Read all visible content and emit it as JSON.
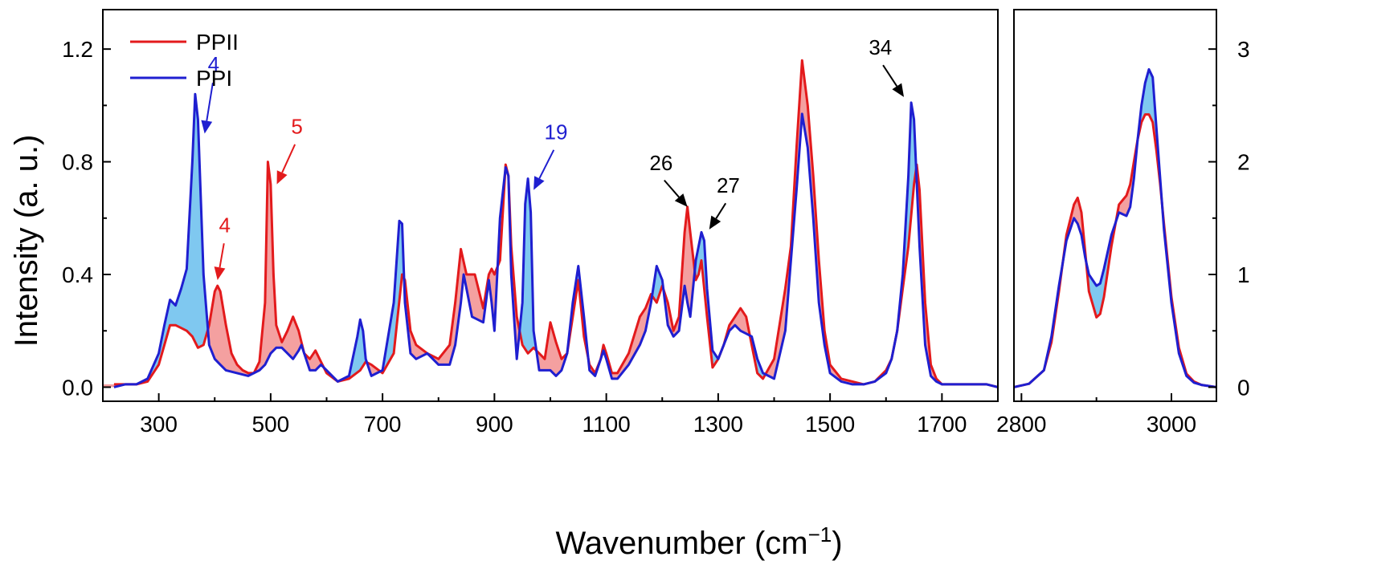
{
  "chart_data": {
    "type": "line",
    "title": "",
    "xlabel": "Wavenumber (cm",
    "xlabel_sup": "−1",
    "xlabel_close": ")",
    "ylabel": "Intensity (a. u.)",
    "colors": {
      "PPII": "#e31a1c",
      "PPI": "#1f1fd0",
      "fill_PPII_above": "#f4a0a0",
      "fill_PPI_above": "#7fc8f0"
    },
    "legend": {
      "placement": "top-left",
      "entries": [
        "PPII",
        "PPI"
      ]
    },
    "grid": false,
    "panels": [
      {
        "name": "low-wavenumber",
        "xlim": [
          200,
          1800
        ],
        "ylim": [
          -0.05,
          1.34
        ],
        "xticks": [
          300,
          500,
          700,
          900,
          1100,
          1300,
          1500,
          1700
        ],
        "xtick_labels": [
          "300",
          "500",
          "700",
          "900",
          "1100",
          "1300",
          "1500",
          "1700"
        ],
        "yticks": [
          0.0,
          0.4,
          0.8,
          1.2
        ],
        "ytick_labels": [
          "0.0",
          "0.4",
          "0.8",
          "1.2"
        ],
        "series": [
          {
            "name": "PPII",
            "x": [
              220,
              240,
              260,
              280,
              300,
              310,
              320,
              330,
              340,
              350,
              360,
              370,
              380,
              390,
              400,
              405,
              410,
              420,
              430,
              440,
              450,
              460,
              470,
              480,
              490,
              495,
              500,
              505,
              510,
              520,
              530,
              540,
              550,
              560,
              570,
              580,
              590,
              600,
              620,
              640,
              660,
              670,
              680,
              700,
              720,
              735,
              740,
              750,
              760,
              780,
              800,
              820,
              830,
              840,
              850,
              865,
              880,
              890,
              895,
              900,
              910,
              920,
              925,
              930,
              940,
              950,
              960,
              970,
              980,
              990,
              1000,
              1010,
              1020,
              1030,
              1040,
              1050,
              1060,
              1070,
              1080,
              1090,
              1095,
              1100,
              1110,
              1120,
              1140,
              1160,
              1170,
              1180,
              1190,
              1200,
              1210,
              1220,
              1230,
              1240,
              1245,
              1250,
              1260,
              1265,
              1270,
              1280,
              1290,
              1300,
              1310,
              1320,
              1330,
              1340,
              1350,
              1360,
              1370,
              1380,
              1400,
              1420,
              1430,
              1440,
              1450,
              1460,
              1470,
              1480,
              1490,
              1500,
              1520,
              1540,
              1560,
              1580,
              1600,
              1610,
              1620,
              1630,
              1640,
              1650,
              1655,
              1660,
              1670,
              1680,
              1690,
              1700,
              1720,
              1740,
              1760,
              1780,
              1800
            ],
            "y": [
              0.01,
              0.01,
              0.01,
              0.02,
              0.08,
              0.15,
              0.22,
              0.22,
              0.21,
              0.2,
              0.18,
              0.14,
              0.15,
              0.22,
              0.34,
              0.36,
              0.34,
              0.22,
              0.12,
              0.08,
              0.06,
              0.05,
              0.05,
              0.09,
              0.3,
              0.8,
              0.72,
              0.4,
              0.22,
              0.16,
              0.2,
              0.25,
              0.2,
              0.12,
              0.1,
              0.13,
              0.09,
              0.05,
              0.02,
              0.03,
              0.06,
              0.09,
              0.08,
              0.05,
              0.12,
              0.4,
              0.38,
              0.2,
              0.15,
              0.12,
              0.1,
              0.15,
              0.3,
              0.49,
              0.4,
              0.4,
              0.28,
              0.4,
              0.42,
              0.4,
              0.45,
              0.79,
              0.75,
              0.5,
              0.25,
              0.15,
              0.12,
              0.14,
              0.12,
              0.1,
              0.23,
              0.16,
              0.1,
              0.12,
              0.25,
              0.38,
              0.18,
              0.08,
              0.05,
              0.1,
              0.15,
              0.12,
              0.05,
              0.05,
              0.12,
              0.25,
              0.28,
              0.33,
              0.3,
              0.36,
              0.3,
              0.2,
              0.25,
              0.55,
              0.64,
              0.55,
              0.38,
              0.4,
              0.45,
              0.25,
              0.07,
              0.1,
              0.15,
              0.22,
              0.25,
              0.28,
              0.25,
              0.15,
              0.05,
              0.03,
              0.1,
              0.35,
              0.5,
              0.85,
              1.16,
              1.0,
              0.75,
              0.45,
              0.2,
              0.08,
              0.03,
              0.02,
              0.01,
              0.02,
              0.06,
              0.1,
              0.2,
              0.35,
              0.5,
              0.72,
              0.79,
              0.7,
              0.3,
              0.08,
              0.03,
              0.01,
              0.01,
              0.01,
              0.01,
              0.01,
              0.0
            ]
          },
          {
            "name": "PPI",
            "x": [
              220,
              240,
              260,
              280,
              300,
              310,
              320,
              330,
              340,
              350,
              360,
              365,
              370,
              380,
              390,
              400,
              410,
              420,
              440,
              460,
              480,
              490,
              500,
              510,
              520,
              530,
              540,
              550,
              555,
              560,
              570,
              580,
              590,
              600,
              620,
              640,
              655,
              660,
              665,
              670,
              680,
              700,
              720,
              730,
              735,
              740,
              750,
              760,
              780,
              800,
              820,
              830,
              840,
              845,
              850,
              860,
              880,
              890,
              895,
              900,
              910,
              920,
              925,
              930,
              940,
              950,
              955,
              960,
              965,
              970,
              980,
              990,
              1000,
              1010,
              1020,
              1030,
              1040,
              1050,
              1060,
              1070,
              1080,
              1090,
              1095,
              1100,
              1110,
              1120,
              1140,
              1160,
              1170,
              1180,
              1190,
              1200,
              1210,
              1220,
              1230,
              1240,
              1245,
              1250,
              1260,
              1270,
              1275,
              1280,
              1290,
              1300,
              1310,
              1320,
              1330,
              1340,
              1350,
              1360,
              1370,
              1380,
              1400,
              1420,
              1430,
              1440,
              1450,
              1460,
              1470,
              1480,
              1490,
              1500,
              1520,
              1540,
              1560,
              1580,
              1600,
              1610,
              1620,
              1630,
              1640,
              1645,
              1650,
              1660,
              1670,
              1680,
              1690,
              1700,
              1720,
              1740,
              1760,
              1780,
              1800
            ],
            "y": [
              0.0,
              0.01,
              0.01,
              0.03,
              0.12,
              0.22,
              0.31,
              0.29,
              0.35,
              0.42,
              0.8,
              1.04,
              0.95,
              0.4,
              0.15,
              0.1,
              0.08,
              0.06,
              0.05,
              0.04,
              0.06,
              0.08,
              0.12,
              0.14,
              0.14,
              0.12,
              0.1,
              0.13,
              0.15,
              0.12,
              0.06,
              0.06,
              0.08,
              0.06,
              0.02,
              0.04,
              0.18,
              0.24,
              0.2,
              0.1,
              0.04,
              0.06,
              0.3,
              0.59,
              0.58,
              0.3,
              0.12,
              0.1,
              0.12,
              0.08,
              0.08,
              0.15,
              0.3,
              0.4,
              0.35,
              0.25,
              0.23,
              0.38,
              0.3,
              0.2,
              0.6,
              0.78,
              0.75,
              0.4,
              0.1,
              0.3,
              0.65,
              0.74,
              0.62,
              0.2,
              0.06,
              0.06,
              0.06,
              0.04,
              0.06,
              0.12,
              0.3,
              0.43,
              0.25,
              0.06,
              0.04,
              0.1,
              0.13,
              0.1,
              0.03,
              0.03,
              0.08,
              0.15,
              0.2,
              0.3,
              0.43,
              0.38,
              0.22,
              0.18,
              0.2,
              0.36,
              0.3,
              0.25,
              0.45,
              0.55,
              0.52,
              0.35,
              0.13,
              0.1,
              0.15,
              0.2,
              0.22,
              0.2,
              0.19,
              0.18,
              0.1,
              0.05,
              0.03,
              0.2,
              0.45,
              0.7,
              0.97,
              0.85,
              0.6,
              0.3,
              0.15,
              0.05,
              0.02,
              0.01,
              0.01,
              0.02,
              0.05,
              0.1,
              0.2,
              0.4,
              0.75,
              1.01,
              0.95,
              0.5,
              0.15,
              0.04,
              0.02,
              0.01,
              0.01,
              0.01,
              0.01,
              0.01,
              0.0
            ]
          }
        ],
        "annotations": [
          {
            "text": "4",
            "color": "#1f1fd0",
            "x": 365,
            "y": 1.04,
            "text_x": 398,
            "text_y": 1.12,
            "tip_x": 382,
            "tip_y": 0.9
          },
          {
            "text": "4",
            "color": "#e31a1c",
            "x": 405,
            "y": 0.36,
            "text_x": 418,
            "text_y": 0.55,
            "tip_x": 405,
            "tip_y": 0.38
          },
          {
            "text": "5",
            "color": "#e31a1c",
            "x": 500,
            "y": 0.8,
            "text_x": 547,
            "text_y": 0.9,
            "tip_x": 511,
            "tip_y": 0.72
          },
          {
            "text": "19",
            "color": "#1f1fd0",
            "x": 965,
            "y": 0.74,
            "text_x": 1010,
            "text_y": 0.88,
            "tip_x": 970,
            "tip_y": 0.7
          },
          {
            "text": "26",
            "color": "#000000",
            "x": 1245,
            "y": 0.64,
            "text_x": 1198,
            "text_y": 0.77,
            "tip_x": 1245,
            "tip_y": 0.64
          },
          {
            "text": "27",
            "color": "#000000",
            "x": 1275,
            "y": 0.55,
            "text_x": 1318,
            "text_y": 0.69,
            "tip_x": 1284,
            "tip_y": 0.56
          },
          {
            "text": "34",
            "color": "#000000",
            "x": 1645,
            "y": 1.01,
            "text_x": 1590,
            "text_y": 1.18,
            "tip_x": 1632,
            "tip_y": 1.03
          }
        ]
      },
      {
        "name": "CH-stretch",
        "xlim": [
          2790,
          3060
        ],
        "ylim": [
          -0.125,
          3.35
        ],
        "xticks": [
          2800,
          3000
        ],
        "xtick_labels": [
          "2800",
          "3000"
        ],
        "yticks": [
          0,
          1,
          2,
          3
        ],
        "ytick_labels": [
          "0",
          "1",
          "2",
          "3"
        ],
        "series": [
          {
            "name": "PPII",
            "x": [
              2790,
              2810,
              2830,
              2840,
              2850,
              2860,
              2870,
              2875,
              2880,
              2885,
              2890,
              2900,
              2905,
              2910,
              2920,
              2930,
              2940,
              2945,
              2950,
              2955,
              2960,
              2965,
              2970,
              2975,
              2980,
              2985,
              2990,
              3000,
              3010,
              3020,
              3030,
              3040,
              3060
            ],
            "y": [
              0.0,
              0.03,
              0.15,
              0.4,
              0.85,
              1.35,
              1.62,
              1.68,
              1.55,
              1.2,
              0.85,
              0.62,
              0.65,
              0.8,
              1.25,
              1.62,
              1.7,
              1.8,
              2.0,
              2.2,
              2.35,
              2.42,
              2.42,
              2.35,
              2.1,
              1.8,
              1.45,
              0.8,
              0.35,
              0.12,
              0.05,
              0.02,
              0.0
            ]
          },
          {
            "name": "PPI",
            "x": [
              2790,
              2810,
              2830,
              2840,
              2850,
              2860,
              2870,
              2875,
              2880,
              2885,
              2890,
              2900,
              2905,
              2910,
              2920,
              2930,
              2940,
              2945,
              2950,
              2955,
              2960,
              2965,
              2970,
              2975,
              2980,
              2985,
              2990,
              3000,
              3010,
              3020,
              3030,
              3040,
              3060
            ],
            "y": [
              0.0,
              0.03,
              0.15,
              0.45,
              0.9,
              1.3,
              1.5,
              1.45,
              1.35,
              1.15,
              1.0,
              0.9,
              0.92,
              1.05,
              1.35,
              1.55,
              1.52,
              1.6,
              1.85,
              2.2,
              2.5,
              2.7,
              2.82,
              2.75,
              2.3,
              1.85,
              1.4,
              0.75,
              0.3,
              0.1,
              0.04,
              0.02,
              0.0
            ]
          }
        ]
      }
    ]
  }
}
